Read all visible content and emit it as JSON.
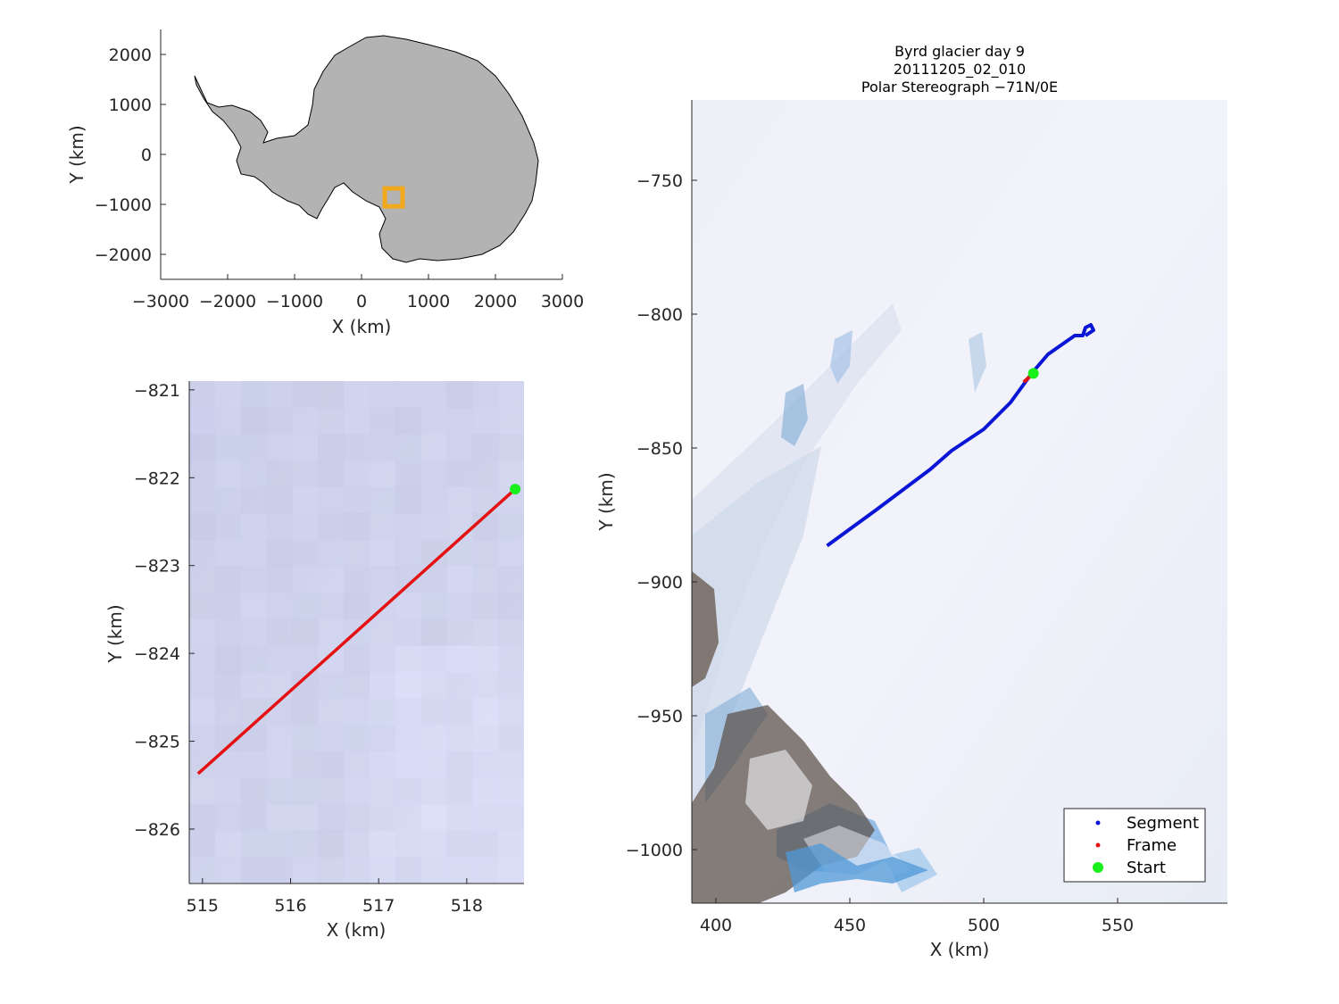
{
  "overview": {
    "xlabel": "X (km)",
    "ylabel": "Y (km)",
    "xlim": [
      -3000,
      3000
    ],
    "ylim": [
      -2500,
      2500
    ],
    "xticks": [
      -3000,
      -2000,
      -1000,
      0,
      1000,
      2000,
      3000
    ],
    "yticks": [
      -2000,
      -1000,
      0,
      1000,
      2000
    ],
    "xtick_labels": [
      "−3000",
      "−2000",
      "−1000",
      "0",
      "1000",
      "2000",
      "3000"
    ],
    "ytick_labels": [
      "−2000",
      "−1000",
      "0",
      "1000",
      "2000"
    ],
    "land_color": "#b3b3b3",
    "marker_color": "#f0a81c",
    "marker_center": [
      480,
      -860
    ]
  },
  "zoom": {
    "xlabel": "X (km)",
    "ylabel": "Y (km)",
    "xlim": [
      514.85,
      518.65
    ],
    "ylim": [
      -826.62,
      -820.9
    ],
    "xticks": [
      515,
      516,
      517,
      518
    ],
    "yticks": [
      -821,
      -822,
      -823,
      -824,
      -825,
      -826
    ],
    "xtick_labels": [
      "515",
      "516",
      "517",
      "518"
    ],
    "ytick_labels": [
      "−821",
      "−822",
      "−823",
      "−824",
      "−825",
      "−826"
    ],
    "frame_line": [
      [
        514.95,
        -825.37
      ],
      [
        518.55,
        -822.13
      ]
    ],
    "start": [
      518.55,
      -822.13
    ]
  },
  "main": {
    "title_lines": [
      "Byrd glacier day 9",
      "20111205_02_010",
      "Polar Stereograph −71N/0E"
    ],
    "xlabel": "X (km)",
    "ylabel": "Y (km)",
    "xlim": [
      391,
      591
    ],
    "ylim": [
      -1020,
      -720
    ],
    "xticks": [
      400,
      450,
      500,
      550
    ],
    "yticks": [
      -750,
      -800,
      -850,
      -900,
      -950,
      -1000
    ],
    "xtick_labels": [
      "400",
      "450",
      "500",
      "550"
    ],
    "ytick_labels": [
      "−750",
      "−800",
      "−850",
      "−900",
      "−950",
      "−1000"
    ],
    "segment_line": [
      [
        441.5,
        -886.5
      ],
      [
        460,
        -873
      ],
      [
        480,
        -858
      ],
      [
        488,
        -851
      ],
      [
        500,
        -843
      ],
      [
        510,
        -833
      ],
      [
        518,
        -822
      ],
      [
        524,
        -815
      ],
      [
        534,
        -808
      ],
      [
        537,
        -808
      ],
      [
        538,
        -805
      ],
      [
        540,
        -804
      ],
      [
        541,
        -806
      ],
      [
        538,
        -808
      ]
    ],
    "frame_line": [
      [
        514.95,
        -825.37
      ],
      [
        518.55,
        -822.13
      ]
    ],
    "start": [
      518.55,
      -822.13
    ],
    "legend": [
      "Segment",
      "Frame",
      "Start"
    ]
  },
  "colors": {
    "segment": "#0a16d6",
    "frame": "#e41212",
    "start": "#19f01c"
  }
}
